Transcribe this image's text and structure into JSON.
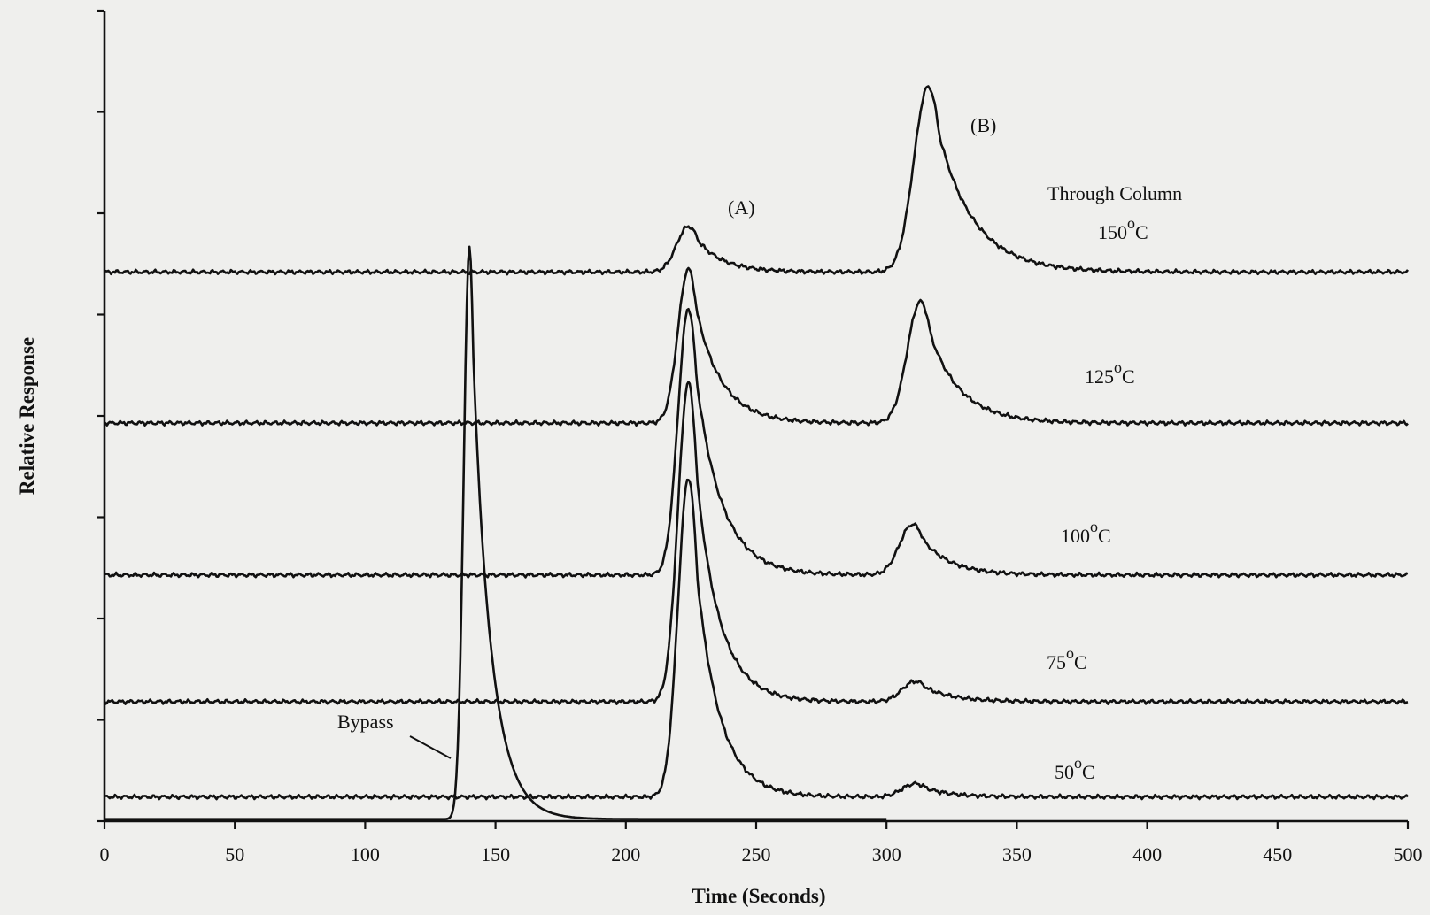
{
  "chart_data": {
    "type": "line",
    "title": "",
    "xlabel": "Time (Seconds)",
    "ylabel": "Relative Response",
    "xlim": [
      0,
      500
    ],
    "x_ticks": [
      0,
      50,
      100,
      150,
      200,
      250,
      300,
      350,
      400,
      450,
      500
    ],
    "y_axis_numeric_labels": false,
    "grid": false,
    "legend": "none",
    "y_units": "relative response, arbitrary (0 = axis, 8 = top of axis)",
    "series": [
      {
        "name": "150 °C",
        "baseline": 5.42,
        "peaks": [
          {
            "t": 224,
            "height": 0.45,
            "sigma_left": 4.5,
            "tau": 10
          },
          {
            "t": 316,
            "height": 1.83,
            "sigma_left": 5.5,
            "tau": 14
          }
        ]
      },
      {
        "name": "125 °C",
        "baseline": 3.93,
        "peaks": [
          {
            "t": 224,
            "height": 1.52,
            "sigma_left": 4.0,
            "tau": 10
          },
          {
            "t": 313,
            "height": 1.2,
            "sigma_left": 5.0,
            "tau": 12
          }
        ]
      },
      {
        "name": "100 °C",
        "baseline": 2.43,
        "peaks": [
          {
            "t": 224,
            "height": 2.63,
            "sigma_left": 4.0,
            "tau": 10
          },
          {
            "t": 310,
            "height": 0.5,
            "sigma_left": 5.0,
            "tau": 11
          }
        ]
      },
      {
        "name": "75 °C",
        "baseline": 1.18,
        "peaks": [
          {
            "t": 224,
            "height": 3.15,
            "sigma_left": 4.0,
            "tau": 9
          },
          {
            "t": 311,
            "height": 0.2,
            "sigma_left": 5.0,
            "tau": 11
          }
        ]
      },
      {
        "name": "50 °C",
        "baseline": 0.24,
        "peaks": [
          {
            "t": 224,
            "height": 3.15,
            "sigma_left": 4.0,
            "tau": 9
          },
          {
            "t": 311,
            "height": 0.13,
            "sigma_left": 5.0,
            "tau": 10
          }
        ]
      },
      {
        "name": "Bypass",
        "baseline": 0.02,
        "peaks": [
          {
            "t": 140,
            "height": 5.65,
            "sigma_left": 2.2,
            "tau": 7
          }
        ]
      }
    ],
    "annotations": {
      "peak_a": "(A)",
      "peak_b": "(B)",
      "through_column": "Through Column",
      "bypass": "Bypass",
      "curve_labels": [
        {
          "num": "150",
          "sup": "o",
          "unit": "C"
        },
        {
          "num": "125",
          "sup": "o",
          "unit": "C"
        },
        {
          "num": "100",
          "sup": "o",
          "unit": "C"
        },
        {
          "num": "75",
          "sup": "o",
          "unit": "C"
        },
        {
          "num": "50",
          "sup": "o",
          "unit": "C"
        }
      ]
    }
  }
}
